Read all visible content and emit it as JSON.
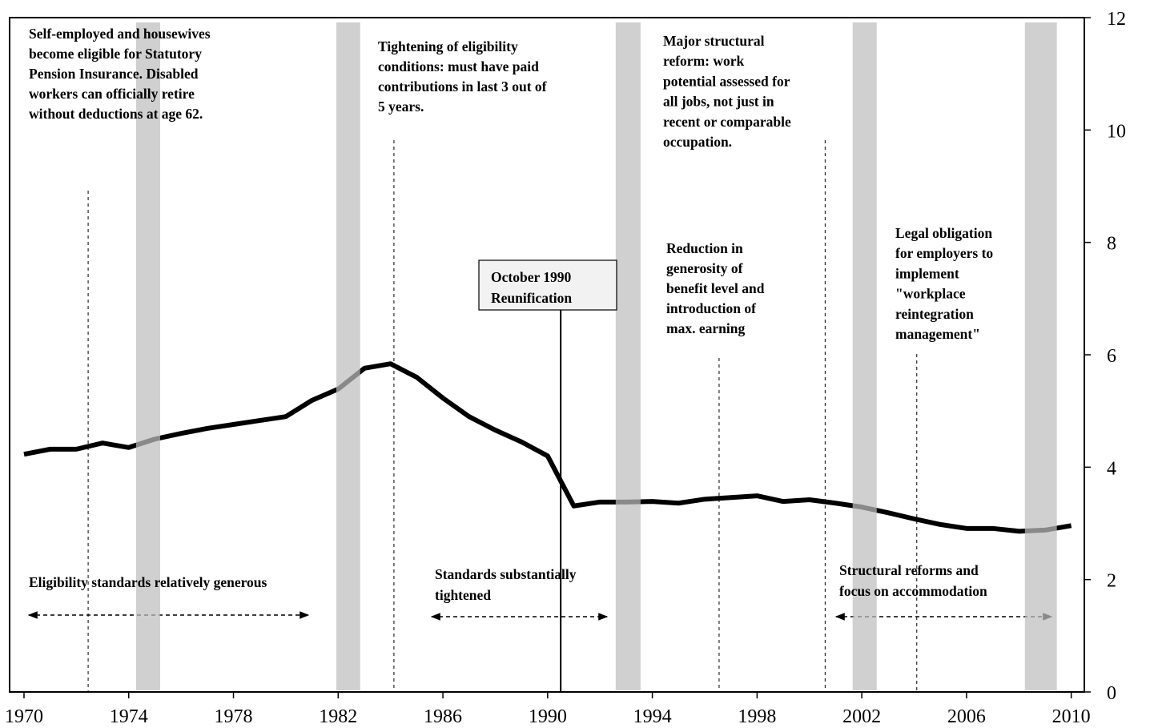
{
  "chart_data": {
    "type": "line",
    "x": [
      1970,
      1971,
      1972,
      1973,
      1974,
      1975,
      1976,
      1977,
      1978,
      1979,
      1980,
      1981,
      1982,
      1983,
      1984,
      1985,
      1986,
      1987,
      1988,
      1989,
      1990,
      1991,
      1992,
      1993,
      1994,
      1995,
      1996,
      1997,
      1998,
      1999,
      2000,
      2001,
      2002,
      2003,
      2004,
      2005,
      2006,
      2007,
      2008,
      2009,
      2010
    ],
    "series": [
      {
        "color": "#000000",
        "values": [
          4.23,
          4.32,
          4.32,
          4.43,
          4.35,
          4.5,
          4.6,
          4.69,
          4.76,
          4.83,
          4.9,
          5.19,
          5.39,
          5.76,
          5.84,
          5.6,
          5.23,
          4.9,
          4.66,
          4.45,
          4.2,
          3.31,
          3.38,
          3.38,
          3.39,
          3.36,
          3.43,
          3.46,
          3.49,
          3.39,
          3.42,
          3.36,
          3.29,
          3.19,
          3.08,
          2.98,
          2.91,
          2.91,
          2.86,
          2.88,
          2.96
        ]
      }
    ],
    "xlim": [
      1969.45,
      2010.5
    ],
    "ylim": [
      0,
      12
    ],
    "xticks": [
      1970,
      1974,
      1978,
      1982,
      1986,
      1990,
      1994,
      1998,
      2002,
      2006,
      2010
    ],
    "yticks": [
      0,
      2,
      4,
      6,
      8,
      10,
      12
    ],
    "shaded_periods": [
      [
        1974.28,
        1975.2
      ],
      [
        1981.93,
        1982.84
      ],
      [
        1992.6,
        1993.55
      ],
      [
        2001.65,
        2002.57
      ],
      [
        2008.23,
        2009.45
      ]
    ],
    "event_lines": [
      1972.45,
      1984.13,
      1996.55,
      2000.6,
      2004.1
    ],
    "reunification_line": 1990.5,
    "callout": [
      "October 1990",
      "Reunification"
    ],
    "annotations": [
      [
        "Self-employed and housewives",
        "become eligible for Statutory",
        "Pension Insurance. Disabled",
        "workers can officially retire",
        "without deductions at age 62."
      ],
      [
        "Tightening of eligibility",
        "conditions: must have paid",
        "contributions in last 3 out of",
        "5 years."
      ],
      [
        "Major structural",
        "reform: work",
        "potential assessed  for",
        "all jobs, not just in",
        "recent or comparable",
        "occupation."
      ],
      [
        "Reduction in",
        "generosity of",
        "benefit level and",
        "introduction of",
        "max. earning"
      ],
      [
        "Legal obligation",
        "for employers to",
        "implement",
        "\"workplace",
        "reintegration",
        "management\""
      ],
      [
        "Eligibility standards relatively generous"
      ],
      [
        "Standards substantially",
        "tightened"
      ],
      [
        "Structural reforms and",
        "focus on accommodation"
      ]
    ]
  }
}
